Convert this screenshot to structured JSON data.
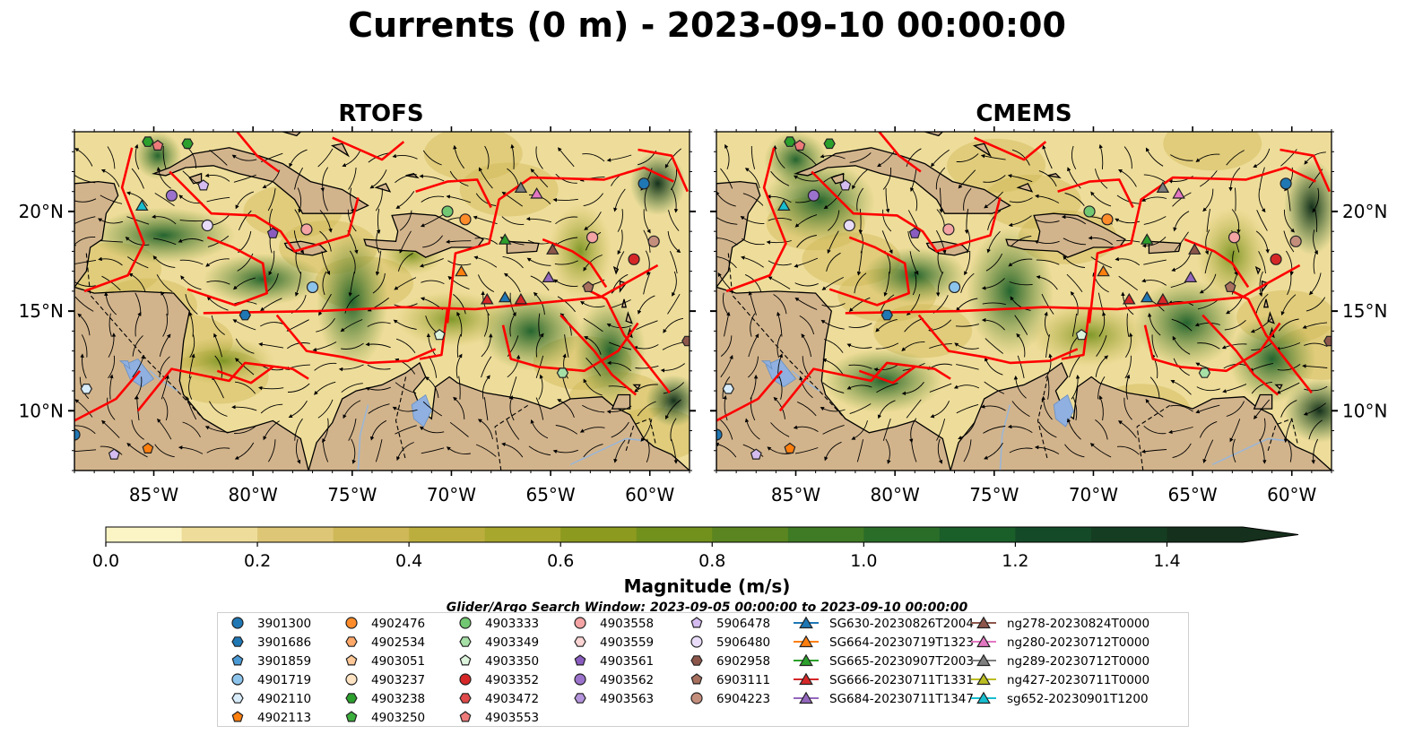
{
  "title": "Currents (0 m) - 2023-09-10 00:00:00",
  "panels": [
    {
      "title": "RTOFS",
      "ytick_side": "left"
    },
    {
      "title": "CMEMS",
      "ytick_side": "right"
    }
  ],
  "map": {
    "lon_range": [
      -89,
      -58
    ],
    "lat_range": [
      7,
      24
    ],
    "xticks": [
      {
        "value": -85,
        "label": "85°W"
      },
      {
        "value": -80,
        "label": "80°W"
      },
      {
        "value": -75,
        "label": "75°W"
      },
      {
        "value": -70,
        "label": "70°W"
      },
      {
        "value": -65,
        "label": "65°W"
      },
      {
        "value": -60,
        "label": "60°W"
      }
    ],
    "yticks": [
      {
        "value": 20,
        "label": "20°N"
      },
      {
        "value": 15,
        "label": "15°N"
      },
      {
        "value": 10,
        "label": "10°N"
      }
    ],
    "colors": {
      "land": "#d2b48c",
      "boundary": "#ff0000",
      "streamline": "#000000",
      "lake": "#8fb0e0"
    }
  },
  "colorbar": {
    "label": "Magnitude (m/s)",
    "min": 0.0,
    "max": 1.5,
    "extend": "max",
    "ticks": [
      0.0,
      0.2,
      0.4,
      0.6,
      0.8,
      1.0,
      1.2,
      1.4
    ],
    "tick_labels": [
      "0.0",
      "0.2",
      "0.4",
      "0.6",
      "0.8",
      "1.0",
      "1.2",
      "1.4"
    ],
    "colors": [
      "#fbf5c6",
      "#eedd9a",
      "#ddc676",
      "#cfb857",
      "#bcae3e",
      "#a7a62d",
      "#8c9a1f",
      "#72901c",
      "#5a8520",
      "#3f7a24",
      "#2a6d28",
      "#1a5e2a",
      "#144a28",
      "#143d22",
      "#15301c"
    ]
  },
  "search_window": "Glider/Argo Search Window: 2023-09-05 00:00:00 to 2023-09-10 00:00:00",
  "legend": {
    "columns": [
      [
        {
          "label": "3901300",
          "marker": "circle",
          "color": "#1f77b4"
        },
        {
          "label": "3901686",
          "marker": "hexagon",
          "color": "#1f77b4"
        },
        {
          "label": "3901859",
          "marker": "pentagon",
          "color": "#4a9ad6"
        },
        {
          "label": "4901719",
          "marker": "circle",
          "color": "#8cc4ec"
        },
        {
          "label": "4902110",
          "marker": "hexagon",
          "color": "#d8ecfa"
        },
        {
          "label": "4902113",
          "marker": "pentagon",
          "color": "#ff7f0e"
        }
      ],
      [
        {
          "label": "4902476",
          "marker": "circle",
          "color": "#ff8c2a"
        },
        {
          "label": "4902534",
          "marker": "hexagon",
          "color": "#ffa868"
        },
        {
          "label": "4903051",
          "marker": "pentagon",
          "color": "#ffc896"
        },
        {
          "label": "4903237",
          "marker": "circle",
          "color": "#ffe4c4"
        },
        {
          "label": "4903238",
          "marker": "hexagon",
          "color": "#2ca02c"
        },
        {
          "label": "4903250",
          "marker": "pentagon",
          "color": "#3cae3c"
        }
      ],
      [
        {
          "label": "4903333",
          "marker": "circle",
          "color": "#72c872"
        },
        {
          "label": "4903349",
          "marker": "hexagon",
          "color": "#a6e0a6"
        },
        {
          "label": "4903350",
          "marker": "pentagon",
          "color": "#dcf4dc"
        },
        {
          "label": "4903352",
          "marker": "circle",
          "color": "#d62728"
        },
        {
          "label": "4903472",
          "marker": "hexagon",
          "color": "#e04a4a"
        },
        {
          "label": "4903553",
          "marker": "pentagon",
          "color": "#ee7a7a"
        }
      ],
      [
        {
          "label": "4903558",
          "marker": "circle",
          "color": "#f4a4a4"
        },
        {
          "label": "4903559",
          "marker": "hexagon",
          "color": "#fbd4d4"
        },
        {
          "label": "4903561",
          "marker": "pentagon",
          "color": "#8a5cc0"
        },
        {
          "label": "4903562",
          "marker": "circle",
          "color": "#9b72cc"
        },
        {
          "label": "4903563",
          "marker": "hexagon",
          "color": "#b494dc"
        }
      ],
      [
        {
          "label": "5906478",
          "marker": "pentagon",
          "color": "#d4bcf0"
        },
        {
          "label": "5906480",
          "marker": "circle",
          "color": "#e8dcf8"
        },
        {
          "label": "6902958",
          "marker": "hexagon",
          "color": "#8c564b"
        },
        {
          "label": "6903111",
          "marker": "pentagon",
          "color": "#a8705e"
        },
        {
          "label": "6904223",
          "marker": "circle",
          "color": "#c48e7c"
        }
      ],
      [
        {
          "label": "SG630-20230826T2004",
          "marker": "triangle",
          "color": "#1f77b4"
        },
        {
          "label": "SG664-20230719T1323",
          "marker": "triangle",
          "color": "#ff7f0e"
        },
        {
          "label": "SG665-20230907T2003",
          "marker": "triangle",
          "color": "#2ca02c"
        },
        {
          "label": "SG666-20230711T1331",
          "marker": "triangle",
          "color": "#d62728"
        },
        {
          "label": "SG684-20230711T1347",
          "marker": "triangle",
          "color": "#9467bd"
        }
      ],
      [
        {
          "label": "ng278-20230824T0000",
          "marker": "triangle",
          "color": "#8c564b"
        },
        {
          "label": "ng280-20230712T0000",
          "marker": "triangle",
          "color": "#e377c2"
        },
        {
          "label": "ng289-20230712T0000",
          "marker": "triangle",
          "color": "#7f7f7f"
        },
        {
          "label": "ng427-20230711T0000",
          "marker": "triangle",
          "color": "#bcbd22"
        },
        {
          "label": "sg652-20230901T1200",
          "marker": "triangle",
          "color": "#17becf"
        }
      ]
    ]
  },
  "observations": [
    {
      "id": "4903238",
      "lon": -85.3,
      "lat": 23.5,
      "marker": "hexagon",
      "color": "#2ca02c"
    },
    {
      "id": "4903553",
      "lon": -84.8,
      "lat": 23.3,
      "marker": "pentagon",
      "color": "#ee7a7a"
    },
    {
      "id": "4903238",
      "lon": -83.3,
      "lat": 23.4,
      "marker": "hexagon",
      "color": "#2ca02c"
    },
    {
      "id": "4903562",
      "lon": -84.1,
      "lat": 20.8,
      "marker": "circle",
      "color": "#9b72cc"
    },
    {
      "id": "5906478",
      "lon": -82.5,
      "lat": 21.3,
      "marker": "pentagon",
      "color": "#d4bcf0"
    },
    {
      "id": "sg652-20230901T1200",
      "lon": -85.6,
      "lat": 20.3,
      "marker": "triangle",
      "color": "#17becf"
    },
    {
      "id": "5906480",
      "lon": -82.3,
      "lat": 19.3,
      "marker": "circle",
      "color": "#e8dcf8"
    },
    {
      "id": "4903561",
      "lon": -79.0,
      "lat": 18.9,
      "marker": "pentagon",
      "color": "#8a5cc0"
    },
    {
      "id": "4903558",
      "lon": -77.3,
      "lat": 19.1,
      "marker": "circle",
      "color": "#f4a4a4"
    },
    {
      "id": "4903333",
      "lon": -70.2,
      "lat": 20.0,
      "marker": "circle",
      "color": "#72c872"
    },
    {
      "id": "4902476",
      "lon": -69.3,
      "lat": 19.6,
      "marker": "circle",
      "color": "#ff8c2a"
    },
    {
      "id": "ng289-20230712T0000",
      "lon": -66.5,
      "lat": 21.2,
      "marker": "triangle",
      "color": "#7f7f7f"
    },
    {
      "id": "ng280-20230712T0000",
      "lon": -65.7,
      "lat": 20.9,
      "marker": "triangle",
      "color": "#e377c2"
    },
    {
      "id": "3901300",
      "lon": -60.3,
      "lat": 21.4,
      "marker": "circle",
      "color": "#1f77b4"
    },
    {
      "id": "SG665-20230907T2003",
      "lon": -67.3,
      "lat": 18.6,
      "marker": "triangle",
      "color": "#2ca02c"
    },
    {
      "id": "ng278-20230824T0000",
      "lon": -64.9,
      "lat": 18.1,
      "marker": "triangle",
      "color": "#8c564b"
    },
    {
      "id": "4903558",
      "lon": -62.9,
      "lat": 18.7,
      "marker": "circle",
      "color": "#f4a4a4"
    },
    {
      "id": "6904223",
      "lon": -59.8,
      "lat": 18.5,
      "marker": "circle",
      "color": "#c48e7c"
    },
    {
      "id": "4903352",
      "lon": -60.8,
      "lat": 17.6,
      "marker": "circle",
      "color": "#d62728"
    },
    {
      "id": "SG664-20230719T1323",
      "lon": -69.5,
      "lat": 17.0,
      "marker": "triangle",
      "color": "#ff7f0e"
    },
    {
      "id": "SG684-20230711T1347",
      "lon": -65.1,
      "lat": 16.7,
      "marker": "triangle",
      "color": "#9467bd"
    },
    {
      "id": "6903111",
      "lon": -63.1,
      "lat": 16.2,
      "marker": "pentagon",
      "color": "#a8705e"
    },
    {
      "id": "4901719",
      "lon": -77.0,
      "lat": 16.2,
      "marker": "circle",
      "color": "#8cc4ec"
    },
    {
      "id": "SG666-20230711T1331",
      "lon": -68.2,
      "lat": 15.6,
      "marker": "triangle",
      "color": "#d62728"
    },
    {
      "id": "SG630-20230826T2004",
      "lon": -67.3,
      "lat": 15.7,
      "marker": "triangle",
      "color": "#1f77b4"
    },
    {
      "id": "SG666-20230711T1331",
      "lon": -66.5,
      "lat": 15.6,
      "marker": "triangle",
      "color": "#d62728"
    },
    {
      "id": "3901686",
      "lon": -80.4,
      "lat": 14.8,
      "marker": "hexagon",
      "color": "#1f77b4"
    },
    {
      "id": "4903350",
      "lon": -70.6,
      "lat": 13.8,
      "marker": "pentagon",
      "color": "#dcf4dc"
    },
    {
      "id": "4903349",
      "lon": -64.4,
      "lat": 11.9,
      "marker": "hexagon",
      "color": "#a6e0a6"
    },
    {
      "id": "6902958",
      "lon": -58.1,
      "lat": 13.5,
      "marker": "hexagon",
      "color": "#8c564b"
    },
    {
      "id": "4902110",
      "lon": -88.4,
      "lat": 11.1,
      "marker": "hexagon",
      "color": "#d8ecfa"
    },
    {
      "id": "3901300",
      "lon": -89.0,
      "lat": 8.8,
      "marker": "circle",
      "color": "#1f77b4"
    },
    {
      "id": "4902113",
      "lon": -85.3,
      "lat": 8.1,
      "marker": "pentagon",
      "color": "#ff7f0e"
    },
    {
      "id": "5906478",
      "lon": -87.0,
      "lat": 7.8,
      "marker": "pentagon",
      "color": "#d4bcf0"
    }
  ]
}
